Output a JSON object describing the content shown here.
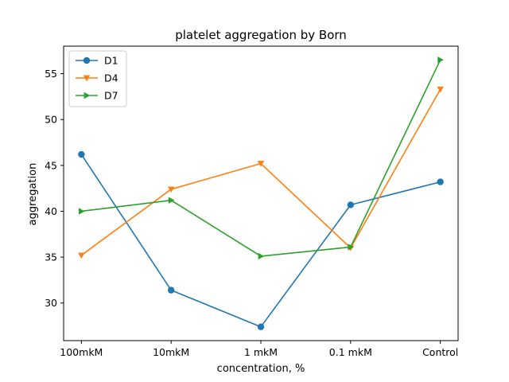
{
  "chart_data": {
    "type": "line",
    "title": "platelet aggregation by Born",
    "xlabel": "concentration, %",
    "ylabel": "aggregation",
    "categories": [
      "100mkM",
      "10mkM",
      "1 mkM",
      "0.1 mkM",
      "Control"
    ],
    "ylim": [
      25.9,
      58.0
    ],
    "yticks": [
      30,
      35,
      40,
      45,
      50,
      55
    ],
    "grid": false,
    "legend_position": "top-left",
    "series": [
      {
        "name": "D1",
        "color": "#1f77b4",
        "marker": "circle",
        "values": [
          46.2,
          31.4,
          27.4,
          40.7,
          43.2
        ]
      },
      {
        "name": "D4",
        "color": "#ff7f0e",
        "marker": "triangle-down",
        "values": [
          35.2,
          42.4,
          45.2,
          36.0,
          53.3
        ]
      },
      {
        "name": "D7",
        "color": "#2ca02c",
        "marker": "triangle-right",
        "values": [
          40.0,
          41.2,
          35.1,
          36.1,
          56.5
        ]
      }
    ]
  }
}
